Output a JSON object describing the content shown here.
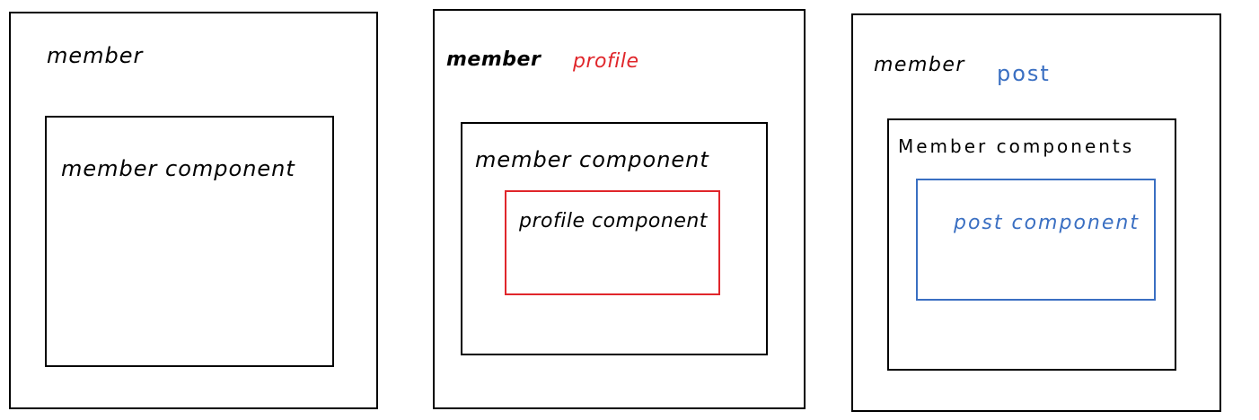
{
  "colors": {
    "outline": "#000000",
    "profile": "#e0262b",
    "post": "#3a6fc2"
  },
  "panel1": {
    "outer_label": "member",
    "inner_label": "member component"
  },
  "panel2": {
    "outer_label": "member",
    "route_label": "profile",
    "inner_label": "member component",
    "nested_label": "profile component"
  },
  "panel3": {
    "outer_label": "member",
    "route_label": "post",
    "inner_label": "Member components",
    "nested_label": "post component"
  }
}
